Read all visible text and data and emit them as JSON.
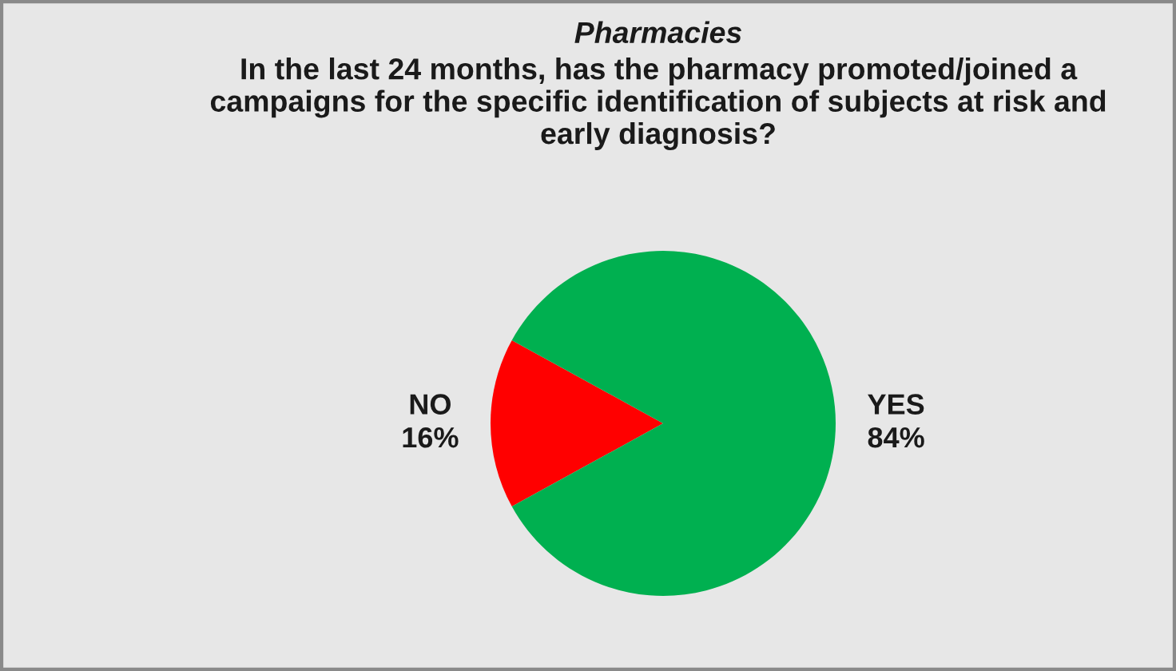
{
  "chart_data": {
    "type": "pie",
    "title": "Pharmacies",
    "subtitle": "In the last 24 months, has the pharmacy promoted/joined a campaigns for the specific identification of subjects at risk and early diagnosis?",
    "categories": [
      "NO",
      "YES"
    ],
    "values": [
      16,
      84
    ],
    "colors": [
      "#ff0000",
      "#00b050"
    ],
    "value_labels": [
      "16%",
      "84%"
    ]
  }
}
